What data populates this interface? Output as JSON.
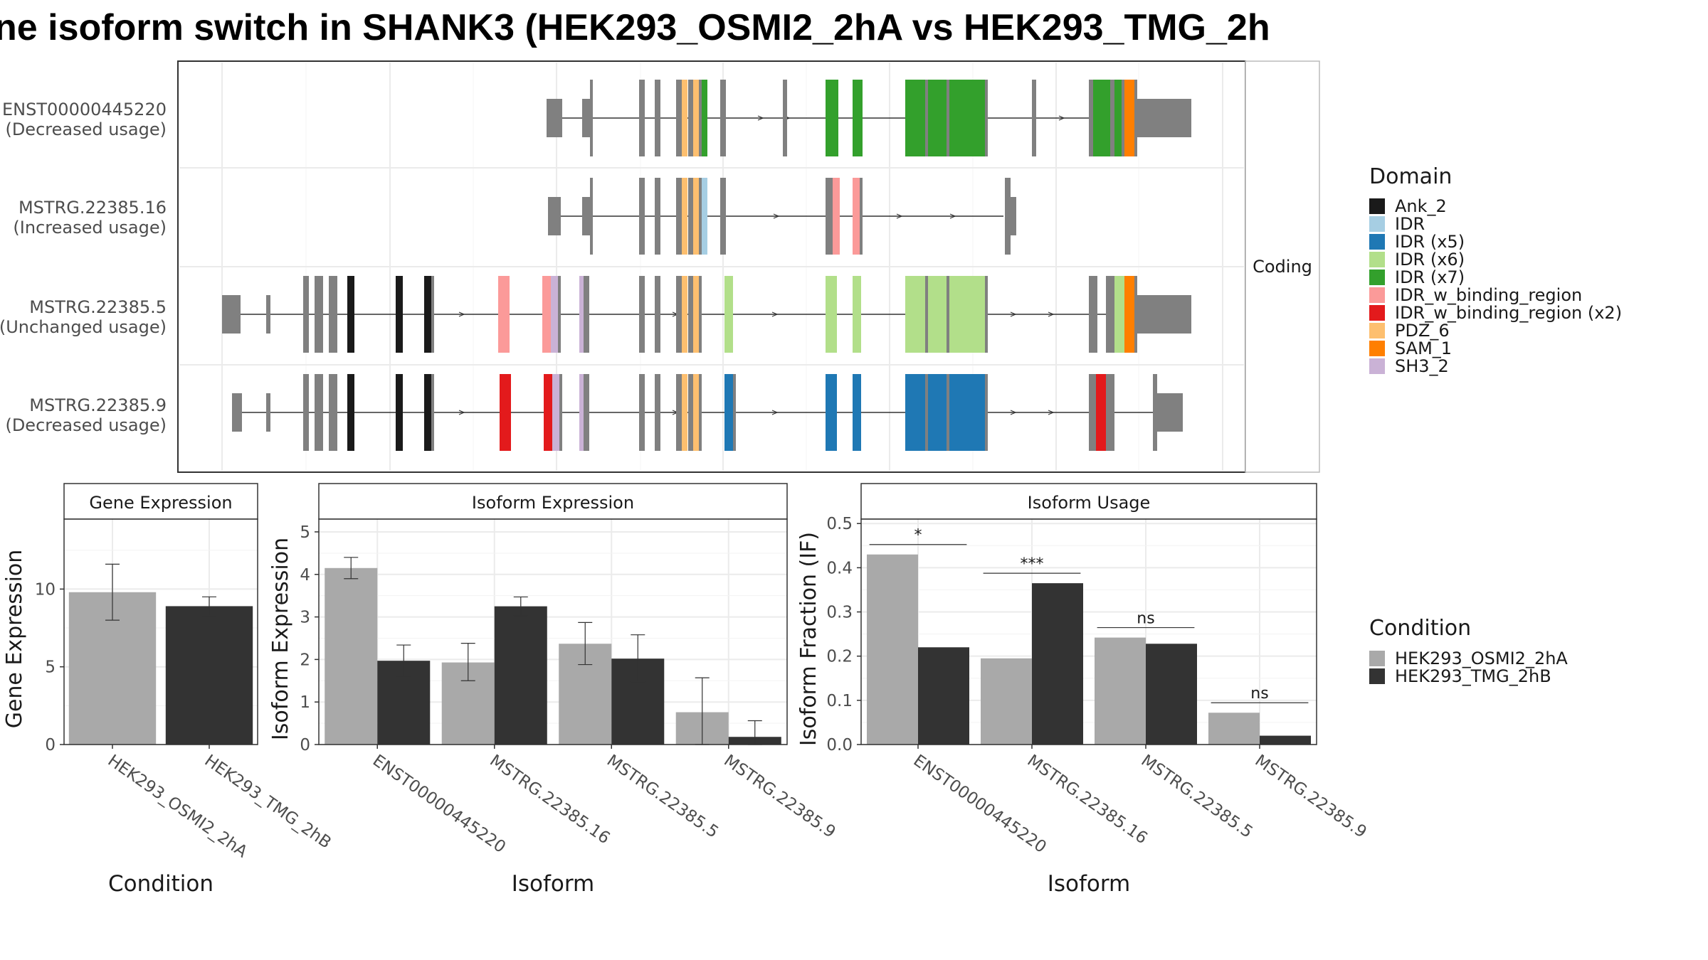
{
  "title": "ne isoform switch in SHANK3 (HEK293_OSMI2_2hA vs HEK293_TMG_2h",
  "structure_panel": {
    "facet_label": "Coding",
    "transcripts": [
      {
        "id": "ENST00000445220",
        "usage": "(Decreased usage)"
      },
      {
        "id": "MSTRG.22385.16",
        "usage": "(Increased usage)"
      },
      {
        "id": "MSTRG.22385.5",
        "usage": "(Unchanged usage)"
      },
      {
        "id": "MSTRG.22385.9",
        "usage": "(Decreased usage)"
      }
    ]
  },
  "legend_domain": {
    "title": "Domain",
    "items": [
      {
        "label": "Ank_2",
        "color": "#1a1a1a"
      },
      {
        "label": "IDR",
        "color": "#a6cee3"
      },
      {
        "label": "IDR (x5)",
        "color": "#1f78b4"
      },
      {
        "label": "IDR (x6)",
        "color": "#b2df8a"
      },
      {
        "label": "IDR (x7)",
        "color": "#33a02c"
      },
      {
        "label": "IDR_w_binding_region",
        "color": "#fb9a99"
      },
      {
        "label": "IDR_w_binding_region (x2)",
        "color": "#e31a1c"
      },
      {
        "label": "PDZ_6",
        "color": "#fdbf6f"
      },
      {
        "label": "SAM_1",
        "color": "#ff7f00"
      },
      {
        "label": "SH3_2",
        "color": "#cab2d6"
      }
    ]
  },
  "legend_condition": {
    "title": "Condition",
    "items": [
      {
        "label": "HEK293_OSMI2_2hA",
        "color": "#a9a9a9"
      },
      {
        "label": "HEK293_TMG_2hB",
        "color": "#333333"
      }
    ]
  },
  "chart_data": [
    {
      "type": "bar",
      "panel_title": "Gene Expression",
      "xlabel": "Condition",
      "ylabel": "Gene Expression",
      "ylim": [
        0,
        14.5
      ],
      "yticks": [
        0,
        5,
        10
      ],
      "categories": [
        "HEK293_OSMI2_2hA",
        "HEK293_TMG_2hB"
      ],
      "values": [
        9.8,
        8.9
      ],
      "errors": [
        [
          8.0,
          11.6
        ],
        [
          8.3,
          9.5
        ]
      ]
    },
    {
      "type": "bar",
      "panel_title": "Isoform Expression",
      "xlabel": "Isoform",
      "ylabel": "Isoform Expression",
      "ylim": [
        0,
        5.3
      ],
      "yticks": [
        0,
        1,
        2,
        3,
        4,
        5
      ],
      "categories": [
        "ENST00000445220",
        "MSTRG.22385.16",
        "MSTRG.22385.5",
        "MSTRG.22385.9"
      ],
      "series": [
        {
          "name": "HEK293_OSMI2_2hA",
          "values": [
            4.15,
            1.93,
            2.37,
            0.76
          ],
          "errors": [
            [
              3.9,
              4.4
            ],
            [
              1.5,
              2.38
            ],
            [
              1.88,
              2.87
            ],
            [
              0.0,
              1.57
            ]
          ]
        },
        {
          "name": "HEK293_TMG_2hB",
          "values": [
            1.97,
            3.25,
            2.02,
            0.18
          ],
          "errors": [
            [
              1.6,
              2.34
            ],
            [
              3.03,
              3.47
            ],
            [
              1.48,
              2.58
            ],
            [
              0.0,
              0.56
            ]
          ]
        }
      ]
    },
    {
      "type": "bar",
      "panel_title": "Isoform Usage",
      "xlabel": "Isoform",
      "ylabel": "Isoform Fraction (IF)",
      "ylim": [
        0,
        0.51
      ],
      "yticks": [
        "0.0",
        "0.1",
        "0.2",
        "0.3",
        "0.4",
        "0.5"
      ],
      "categories": [
        "ENST00000445220",
        "MSTRG.22385.16",
        "MSTRG.22385.5",
        "MSTRG.22385.9"
      ],
      "series": [
        {
          "name": "HEK293_OSMI2_2hA",
          "values": [
            0.43,
            0.195,
            0.242,
            0.072
          ]
        },
        {
          "name": "HEK293_TMG_2hB",
          "values": [
            0.22,
            0.365,
            0.228,
            0.02
          ]
        }
      ],
      "significance": [
        "*",
        "***",
        "ns",
        "ns"
      ]
    }
  ]
}
